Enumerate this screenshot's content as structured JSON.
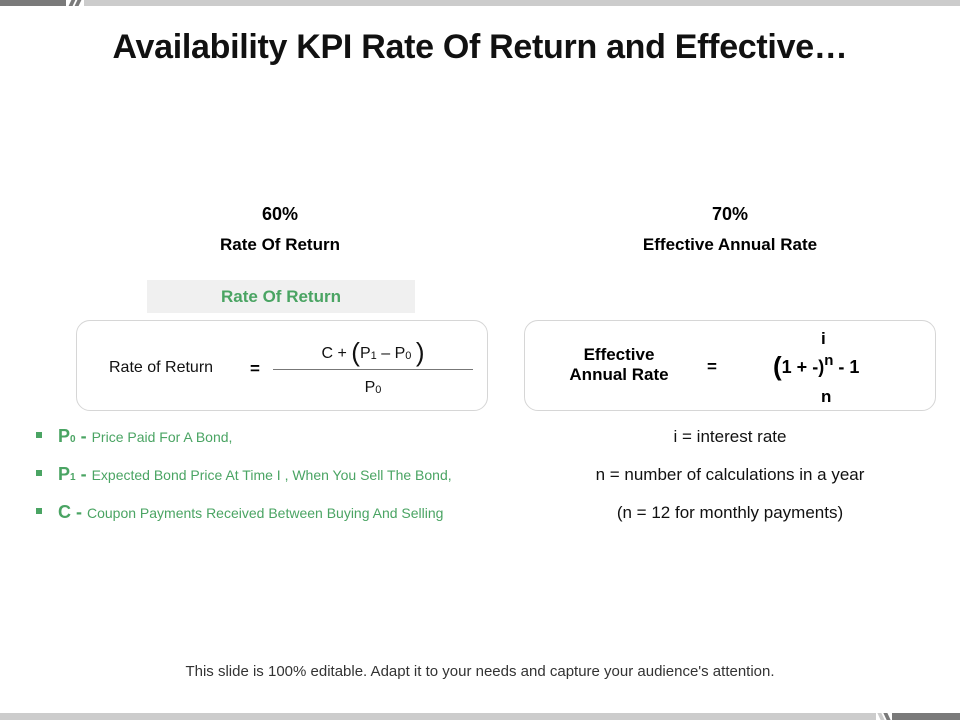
{
  "title": "Availability KPI Rate Of Return and Effective…",
  "kpis": [
    {
      "value": "60%",
      "label": "Rate Of Return"
    },
    {
      "value": "70%",
      "label": "Effective Annual Rate"
    }
  ],
  "banner": "Rate Of Return",
  "ror_formula": {
    "label": "Rate of Return",
    "equals": "=",
    "numerator": {
      "c": "C +",
      "open": "(",
      "p1": "P",
      "p1_sub": "1",
      "minus": "–",
      "p0": "P",
      "p0_sub": "0",
      "close": ")"
    },
    "denominator": {
      "p": "P",
      "sub": "0"
    }
  },
  "ear_formula": {
    "label": "Effective Annual Rate",
    "equals": "=",
    "top": "i",
    "open": "(",
    "body": "1 + -",
    "close": ")",
    "exponent": "n",
    "tail": " - 1",
    "bottom": "n"
  },
  "bullets": [
    {
      "term": "P",
      "sub": "0",
      "sep": " - ",
      "desc": "Price Paid For A Bond,"
    },
    {
      "term": "P",
      "sub": "1",
      "sep": " - ",
      "desc": "Expected Bond Price At Time I , When You Sell The Bond,"
    },
    {
      "term": "C",
      "sub": "",
      "sep": " - ",
      "desc": "Coupon Payments Received Between Buying And Selling"
    }
  ],
  "notes": [
    "i = interest rate",
    "n = number of calculations in a year",
    "(n = 12 for monthly payments)"
  ],
  "footer": "This slide is 100% editable. Adapt it to your needs and capture your audience's attention.",
  "colors": {
    "accent_green": "#4aa463",
    "bar_dark": "#7a7a7a",
    "bar_light": "#cccccc",
    "banner_bg": "#f0f0f0"
  }
}
